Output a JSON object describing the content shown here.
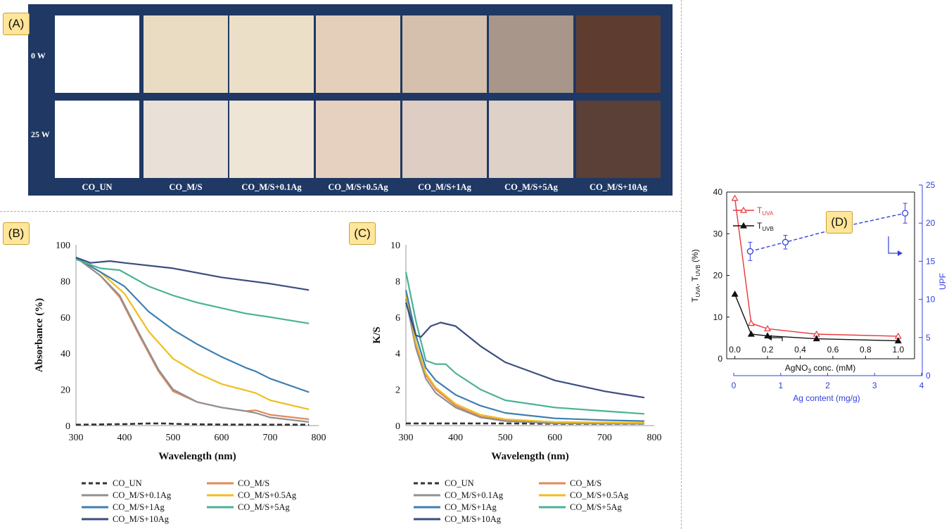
{
  "panel_labels": {
    "a": "(A)",
    "b": "(B)",
    "c": "(C)",
    "d": "(D)"
  },
  "panelA": {
    "rows": [
      "0 W",
      "25 W"
    ],
    "columns": [
      "CO_UN",
      "CO_M/S",
      "CO_M/S+0.1Ag",
      "CO_M/S+0.5Ag",
      "CO_M/S+1Ag",
      "CO_M/S+5Ag",
      "CO_M/S+10Ag"
    ],
    "swatch_colors": [
      [
        "#ffffff",
        "#e9dcc2",
        "#ebe0c7",
        "#e3cfba",
        "#d5c0ae",
        "#a79689",
        "#5e3d30"
      ],
      [
        "#ffffff",
        "#e9e1d8",
        "#eee5d7",
        "#e6d1c0",
        "#ddcdc2",
        "#ddd1c8",
        "#5a4036"
      ]
    ]
  },
  "legend": [
    {
      "name": "CO_UN",
      "color": "#333333",
      "dash": true
    },
    {
      "name": "CO_M/S",
      "color": "#e0895a"
    },
    {
      "name": "CO_M/S+0.1Ag",
      "color": "#909090"
    },
    {
      "name": "CO_M/S+0.5Ag",
      "color": "#f0be1e"
    },
    {
      "name": "CO_M/S+1Ag",
      "color": "#3d7fb2"
    },
    {
      "name": "CO_M/S+5Ag",
      "color": "#4ab295"
    },
    {
      "name": "CO_M/S+10Ag",
      "color": "#3b4d80"
    }
  ],
  "chart_data": [
    {
      "type": "line",
      "xlabel": "Wavelength (nm)",
      "ylabel": "Absorbance (%)",
      "xlim": [
        300,
        800
      ],
      "ylim": [
        0,
        100
      ],
      "xticks": [
        300,
        400,
        500,
        600,
        700,
        800
      ],
      "yticks": [
        0,
        20,
        40,
        60,
        80,
        100
      ],
      "series": [
        {
          "name": "CO_UN",
          "color": "#333333",
          "dash": true,
          "points": [
            [
              300,
              0.5
            ],
            [
              400,
              0.8
            ],
            [
              450,
              1.2
            ],
            [
              480,
              1.2
            ],
            [
              520,
              0.8
            ],
            [
              600,
              0.6
            ],
            [
              700,
              0.5
            ],
            [
              780,
              0.5
            ]
          ]
        },
        {
          "name": "CO_M/S",
          "color": "#e0895a",
          "points": [
            [
              300,
              93
            ],
            [
              350,
              83
            ],
            [
              390,
              71
            ],
            [
              430,
              50
            ],
            [
              470,
              30
            ],
            [
              500,
              19
            ],
            [
              550,
              13
            ],
            [
              600,
              10
            ],
            [
              650,
              8
            ],
            [
              670,
              8.5
            ],
            [
              700,
              6
            ],
            [
              780,
              3.5
            ]
          ]
        },
        {
          "name": "CO_M/S+0.1Ag",
          "color": "#909090",
          "points": [
            [
              300,
              93
            ],
            [
              350,
              83
            ],
            [
              390,
              72
            ],
            [
              430,
              51
            ],
            [
              470,
              31
            ],
            [
              500,
              20
            ],
            [
              550,
              13
            ],
            [
              600,
              10
            ],
            [
              650,
              8
            ],
            [
              670,
              7
            ],
            [
              700,
              4.5
            ],
            [
              780,
              2
            ]
          ]
        },
        {
          "name": "CO_M/S+0.5Ag",
          "color": "#f0be1e",
          "points": [
            [
              300,
              93
            ],
            [
              350,
              85
            ],
            [
              400,
              73
            ],
            [
              450,
              52
            ],
            [
              500,
              37
            ],
            [
              550,
              29
            ],
            [
              600,
              23
            ],
            [
              650,
              19.5
            ],
            [
              670,
              18
            ],
            [
              700,
              14
            ],
            [
              780,
              9
            ]
          ]
        },
        {
          "name": "CO_M/S+1Ag",
          "color": "#3d7fb2",
          "points": [
            [
              300,
              93
            ],
            [
              350,
              85
            ],
            [
              400,
              77
            ],
            [
              450,
              63
            ],
            [
              500,
              53
            ],
            [
              550,
              45
            ],
            [
              600,
              38
            ],
            [
              650,
              32
            ],
            [
              670,
              30
            ],
            [
              700,
              26
            ],
            [
              780,
              18.5
            ]
          ]
        },
        {
          "name": "CO_M/S+5Ag",
          "color": "#4ab295",
          "points": [
            [
              300,
              92
            ],
            [
              350,
              87
            ],
            [
              390,
              86
            ],
            [
              450,
              77
            ],
            [
              500,
              72
            ],
            [
              550,
              68
            ],
            [
              600,
              65
            ],
            [
              650,
              62
            ],
            [
              700,
              60
            ],
            [
              780,
              56.5
            ]
          ]
        },
        {
          "name": "CO_M/S+10Ag",
          "color": "#3b4d80",
          "points": [
            [
              300,
              93
            ],
            [
              330,
              90
            ],
            [
              370,
              91
            ],
            [
              400,
              90
            ],
            [
              500,
              87
            ],
            [
              600,
              82
            ],
            [
              700,
              78.5
            ],
            [
              780,
              75
            ]
          ]
        }
      ]
    },
    {
      "type": "line",
      "xlabel": "Wavelength (nm)",
      "ylabel": "K/S",
      "xlim": [
        300,
        800
      ],
      "ylim": [
        0,
        10
      ],
      "xticks": [
        300,
        400,
        500,
        600,
        700,
        800
      ],
      "yticks": [
        0,
        2,
        4,
        6,
        8,
        10
      ],
      "series": [
        {
          "name": "CO_UN",
          "color": "#333333",
          "dash": true,
          "points": [
            [
              300,
              0.12
            ],
            [
              400,
              0.12
            ],
            [
              500,
              0.12
            ],
            [
              600,
              0.1
            ],
            [
              700,
              0.1
            ],
            [
              780,
              0.1
            ]
          ]
        },
        {
          "name": "CO_M/S",
          "color": "#e0895a",
          "points": [
            [
              300,
              7.2
            ],
            [
              320,
              4.5
            ],
            [
              340,
              2.8
            ],
            [
              360,
              2
            ],
            [
              400,
              1.1
            ],
            [
              450,
              0.5
            ],
            [
              500,
              0.3
            ],
            [
              600,
              0.15
            ],
            [
              780,
              0.1
            ]
          ]
        },
        {
          "name": "CO_M/S+0.1Ag",
          "color": "#909090",
          "points": [
            [
              300,
              7.0
            ],
            [
              320,
              4.3
            ],
            [
              340,
              2.6
            ],
            [
              360,
              1.8
            ],
            [
              400,
              1.0
            ],
            [
              450,
              0.45
            ],
            [
              500,
              0.25
            ],
            [
              600,
              0.12
            ],
            [
              780,
              0.1
            ]
          ]
        },
        {
          "name": "CO_M/S+0.5Ag",
          "color": "#f0be1e",
          "points": [
            [
              300,
              7.3
            ],
            [
              320,
              4.6
            ],
            [
              340,
              2.9
            ],
            [
              360,
              2.1
            ],
            [
              400,
              1.2
            ],
            [
              450,
              0.6
            ],
            [
              500,
              0.35
            ],
            [
              600,
              0.2
            ],
            [
              780,
              0.15
            ]
          ]
        },
        {
          "name": "CO_M/S+1Ag",
          "color": "#3d7fb2",
          "points": [
            [
              300,
              7.5
            ],
            [
              320,
              5
            ],
            [
              340,
              3.2
            ],
            [
              360,
              2.5
            ],
            [
              400,
              1.7
            ],
            [
              450,
              1.1
            ],
            [
              500,
              0.7
            ],
            [
              600,
              0.4
            ],
            [
              700,
              0.3
            ],
            [
              780,
              0.25
            ]
          ]
        },
        {
          "name": "CO_M/S+5Ag",
          "color": "#4ab295",
          "points": [
            [
              300,
              8.5
            ],
            [
              320,
              5.8
            ],
            [
              340,
              3.6
            ],
            [
              360,
              3.4
            ],
            [
              380,
              3.4
            ],
            [
              400,
              2.9
            ],
            [
              450,
              2.0
            ],
            [
              500,
              1.4
            ],
            [
              600,
              1.0
            ],
            [
              700,
              0.8
            ],
            [
              780,
              0.65
            ]
          ]
        },
        {
          "name": "CO_M/S+10Ag",
          "color": "#3b4d80",
          "points": [
            [
              300,
              6.8
            ],
            [
              320,
              5
            ],
            [
              330,
              4.9
            ],
            [
              350,
              5.5
            ],
            [
              370,
              5.7
            ],
            [
              400,
              5.5
            ],
            [
              450,
              4.4
            ],
            [
              500,
              3.5
            ],
            [
              600,
              2.5
            ],
            [
              700,
              1.9
            ],
            [
              780,
              1.55
            ]
          ]
        }
      ]
    },
    {
      "type": "line",
      "xlabel": "AgNO3 conc. (mM)",
      "x2label": "Ag content (mg/g)",
      "ylabel": "TUVA, TUVB (%)",
      "y2label": "UPF",
      "xlim": [
        -0.05,
        1.1
      ],
      "ylim": [
        0,
        40
      ],
      "y2lim": [
        0,
        25
      ],
      "x2lim": [
        0,
        4
      ],
      "xticks": [
        0.0,
        0.2,
        0.4,
        0.6,
        0.8,
        1.0
      ],
      "xticklabels": [
        "0.0",
        "0.2",
        "0.4",
        "0.6",
        "0.8",
        "1.0"
      ],
      "yticks": [
        0,
        10,
        20,
        30,
        40
      ],
      "y2ticks": [
        0,
        5,
        10,
        15,
        20,
        25
      ],
      "x2ticks": [
        0,
        1,
        2,
        3,
        4
      ],
      "series": [
        {
          "name": "TUVA",
          "label_main": "T",
          "label_sub": "UVA",
          "color": "#e8373a",
          "marker": "triangle-open",
          "x": [
            0,
            0.1,
            0.2,
            0.5,
            1.0
          ],
          "y": [
            38.5,
            8.5,
            7.2,
            5.9,
            5.4
          ]
        },
        {
          "name": "TUVB",
          "label_main": "T",
          "label_sub": "UVB",
          "color": "#111111",
          "marker": "triangle-filled",
          "x": [
            0,
            0.1,
            0.2,
            0.5,
            1.0
          ],
          "y": [
            15.5,
            5.9,
            5.5,
            4.8,
            4.3
          ]
        },
        {
          "name": "UPF",
          "color": "#3040e0",
          "marker": "circle-open",
          "dash": true,
          "axis": "x2y2",
          "x": [
            0.35,
            1.1,
            2.45,
            3.65
          ],
          "y": [
            16.3,
            17.5,
            19.7,
            21.3
          ],
          "err": [
            1.2,
            0.9,
            0.6,
            1.3
          ]
        }
      ]
    }
  ]
}
